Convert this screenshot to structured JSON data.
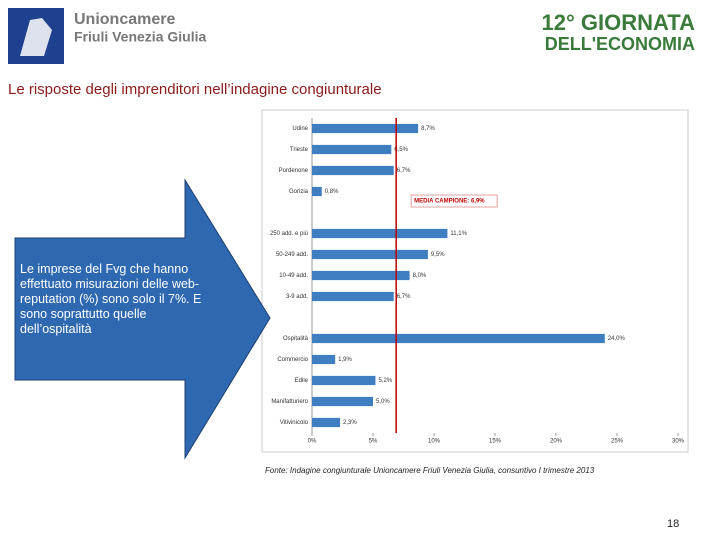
{
  "header": {
    "logo_line1": "Unioncamere",
    "logo_line2": "Friuli Venezia Giulia",
    "event_line1": "12° GIORNATA",
    "event_line2": "DELL'ECONOMIA"
  },
  "slide": {
    "title": "Le risposte degli imprenditori nell’indagine congiunturale",
    "callout": "Le imprese del Fvg che hanno effettuato misurazioni delle web-reputation (%) sono solo il 7%. E sono soprattutto quelle dell’ospitalità",
    "source": "Fonte: Indagine congiunturale Unioncamere Friuli Venezia Giulia, consuntivo I trimestre 2013",
    "page_number": "18"
  },
  "chart_data": {
    "type": "barh",
    "categories": [
      "Udine",
      "Trieste",
      "Pordenone",
      "Gorizia",
      null,
      "250 add. e più",
      "50-249 add.",
      "10-49 add.",
      "3-9 add.",
      null,
      "Ospitalità",
      "Commercio",
      "Edile",
      "Manifatturiero",
      "Vitivinicolo"
    ],
    "values": [
      8.7,
      6.5,
      6.7,
      0.8,
      null,
      11.1,
      9.5,
      8.0,
      6.7,
      null,
      24.0,
      1.9,
      5.2,
      5.0,
      2.3
    ],
    "value_labels": [
      "8,7%",
      "6,5%",
      "6,7%",
      "0,8%",
      null,
      "11,1%",
      "9,5%",
      "8,0%",
      "6,7%",
      null,
      "24,0%",
      "1,9%",
      "5,2%",
      "5,0%",
      "2,3%"
    ],
    "color": "#3f7fc1",
    "xlim": [
      0,
      30
    ],
    "xticks": [
      {
        "value": 0,
        "label": "0%"
      },
      {
        "value": 5,
        "label": "5%"
      },
      {
        "value": 10,
        "label": "10%"
      },
      {
        "value": 15,
        "label": "15%"
      },
      {
        "value": 20,
        "label": "20%"
      },
      {
        "value": 25,
        "label": "25%"
      },
      {
        "value": 30,
        "label": "30%"
      }
    ],
    "reference_line": {
      "value": 6.9,
      "label": "MEDIA CAMPIONE: 6,9%",
      "color": "#c00000"
    }
  }
}
